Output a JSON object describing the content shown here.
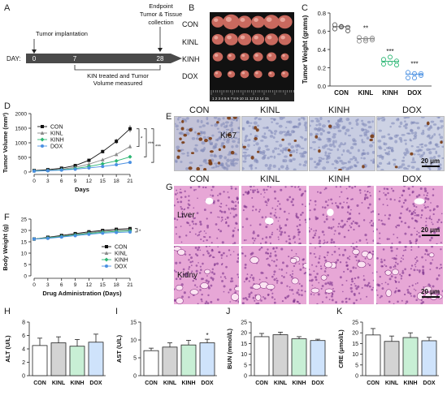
{
  "panel_labels": {
    "A": "A",
    "B": "B",
    "C": "C",
    "D": "D",
    "E": "E",
    "F": "F",
    "G": "G",
    "H": "H",
    "I": "I",
    "J": "J",
    "K": "K"
  },
  "groups": [
    "CON",
    "KINL",
    "KINH",
    "DOX"
  ],
  "timeline": {
    "start_label": "Tumor implantation",
    "end_label": "Endpoint\nTumor & Tissue\ncollection",
    "day_prefix": "DAY:",
    "days": [
      "0",
      "7",
      "28"
    ],
    "bracket_label": "KIN treated and Tumor\nVolume measured"
  },
  "tumor_photo": {
    "row_labels": [
      "CON",
      "KINL",
      "KINH",
      "DOX"
    ],
    "ruler": "1 2 3 4 5 6 7 8 9 10 11 12 13 14 15"
  },
  "histology": {
    "ki67_row_label": "Ki67",
    "liver_row_label": "Liver",
    "kidney_row_label": "Kidny",
    "scale_bar": "20 μm"
  },
  "chart_data": [
    {
      "id": "C",
      "type": "scatter",
      "ylabel": "Tumor Weight (grams)",
      "ylim": [
        0,
        0.8
      ],
      "yticks": [
        "0.0",
        "0.2",
        "0.4",
        "0.6",
        "0.8"
      ],
      "categories": [
        "CON",
        "KINL",
        "KINH",
        "DOX"
      ],
      "means": [
        0.65,
        0.52,
        0.27,
        0.13
      ],
      "significance": [
        "",
        "**",
        "***",
        "***"
      ],
      "colors": [
        "#555555",
        "#888888",
        "#2bb673",
        "#4a90e2"
      ]
    },
    {
      "id": "D",
      "type": "line",
      "xlabel": "Days",
      "ylabel": "Tumor Volume (mm³)",
      "ylim": [
        0,
        2000
      ],
      "yticks": [
        "0",
        "500",
        "1000",
        "1500",
        "2000"
      ],
      "x": [
        0,
        3,
        6,
        9,
        12,
        15,
        18,
        21
      ],
      "series": [
        {
          "name": "CON",
          "values": [
            50,
            80,
            130,
            220,
            400,
            700,
            1050,
            1480
          ],
          "color": "#111111",
          "marker": "square"
        },
        {
          "name": "KINL",
          "values": [
            40,
            60,
            95,
            160,
            270,
            420,
            600,
            870
          ],
          "color": "#888888",
          "marker": "triangle"
        },
        {
          "name": "KINH",
          "values": [
            35,
            50,
            75,
            120,
            190,
            280,
            380,
            520
          ],
          "color": "#2bb673",
          "marker": "diamond"
        },
        {
          "name": "DOX",
          "values": [
            30,
            45,
            65,
            95,
            140,
            190,
            250,
            330
          ],
          "color": "#4a90e2",
          "marker": "circle"
        }
      ],
      "significance": [
        "*",
        "***",
        "***"
      ]
    },
    {
      "id": "F",
      "type": "line",
      "xlabel": "Drug Administration (Days)",
      "ylabel": "Body Weight (g)",
      "ylim": [
        0,
        25
      ],
      "yticks": [
        "0",
        "5",
        "10",
        "15",
        "20",
        "25"
      ],
      "x": [
        0,
        3,
        6,
        9,
        12,
        15,
        18,
        21
      ],
      "series": [
        {
          "name": "CON",
          "values": [
            16.2,
            17.0,
            17.8,
            18.6,
            19.4,
            20.0,
            20.5,
            20.8
          ],
          "color": "#111111",
          "marker": "square"
        },
        {
          "name": "KINL",
          "values": [
            16.2,
            16.8,
            17.5,
            18.2,
            19.0,
            19.6,
            20.0,
            20.2
          ],
          "color": "#888888",
          "marker": "triangle"
        },
        {
          "name": "KINH",
          "values": [
            16.2,
            16.7,
            17.3,
            18.0,
            18.7,
            19.2,
            19.6,
            19.8
          ],
          "color": "#2bb673",
          "marker": "diamond"
        },
        {
          "name": "DOX",
          "values": [
            16.2,
            16.5,
            17.1,
            17.7,
            18.3,
            18.8,
            19.1,
            19.3
          ],
          "color": "#4a90e2",
          "marker": "circle"
        }
      ],
      "significance": [
        "*"
      ]
    },
    {
      "id": "H",
      "type": "bar",
      "ylabel": "ALT (U/L)",
      "ylim": [
        0,
        8
      ],
      "yticks": [
        "0",
        "2",
        "4",
        "6",
        "8"
      ],
      "categories": [
        "CON",
        "KINL",
        "KINH",
        "DOX"
      ],
      "values": [
        4.5,
        4.9,
        4.4,
        5.0
      ],
      "errors": [
        1.1,
        0.9,
        1.0,
        1.2
      ],
      "significance": [
        "",
        "",
        "",
        ""
      ]
    },
    {
      "id": "I",
      "type": "bar",
      "ylabel": "AST (U/L)",
      "ylim": [
        0,
        15
      ],
      "yticks": [
        "0",
        "5",
        "10",
        "15"
      ],
      "categories": [
        "CON",
        "KINL",
        "KINH",
        "DOX"
      ],
      "values": [
        7.0,
        8.0,
        8.6,
        9.2
      ],
      "errors": [
        0.7,
        1.2,
        1.3,
        1.0
      ],
      "significance": [
        "",
        "",
        "",
        "*"
      ]
    },
    {
      "id": "J",
      "type": "bar",
      "ylabel": "BUN (mmol/L)",
      "ylim": [
        0,
        25
      ],
      "yticks": [
        "0",
        "5",
        "10",
        "15",
        "20",
        "25"
      ],
      "categories": [
        "CON",
        "KINL",
        "KINH",
        "DOX"
      ],
      "values": [
        18.2,
        19.1,
        17.2,
        16.4
      ],
      "errors": [
        1.5,
        1.2,
        1.0,
        0.6
      ],
      "significance": [
        "",
        "",
        "",
        ""
      ]
    },
    {
      "id": "K",
      "type": "bar",
      "ylabel": "CRE (μmol/L)",
      "ylim": [
        0,
        25
      ],
      "yticks": [
        "0",
        "5",
        "10",
        "15",
        "20",
        "25"
      ],
      "categories": [
        "CON",
        "KINL",
        "KINH",
        "DOX"
      ],
      "values": [
        19.0,
        16.0,
        17.8,
        16.3
      ],
      "errors": [
        3.0,
        2.5,
        2.2,
        1.6
      ],
      "significance": [
        "",
        "",
        "",
        ""
      ]
    }
  ],
  "colors": {
    "bar": [
      "#ffffff",
      "#d3d3d3",
      "#c8efd5",
      "#cfe3fb"
    ],
    "he_pink": "#e7a7d6",
    "he_dark": "#b45ba7",
    "ki67_bg": "#c8cde2"
  }
}
